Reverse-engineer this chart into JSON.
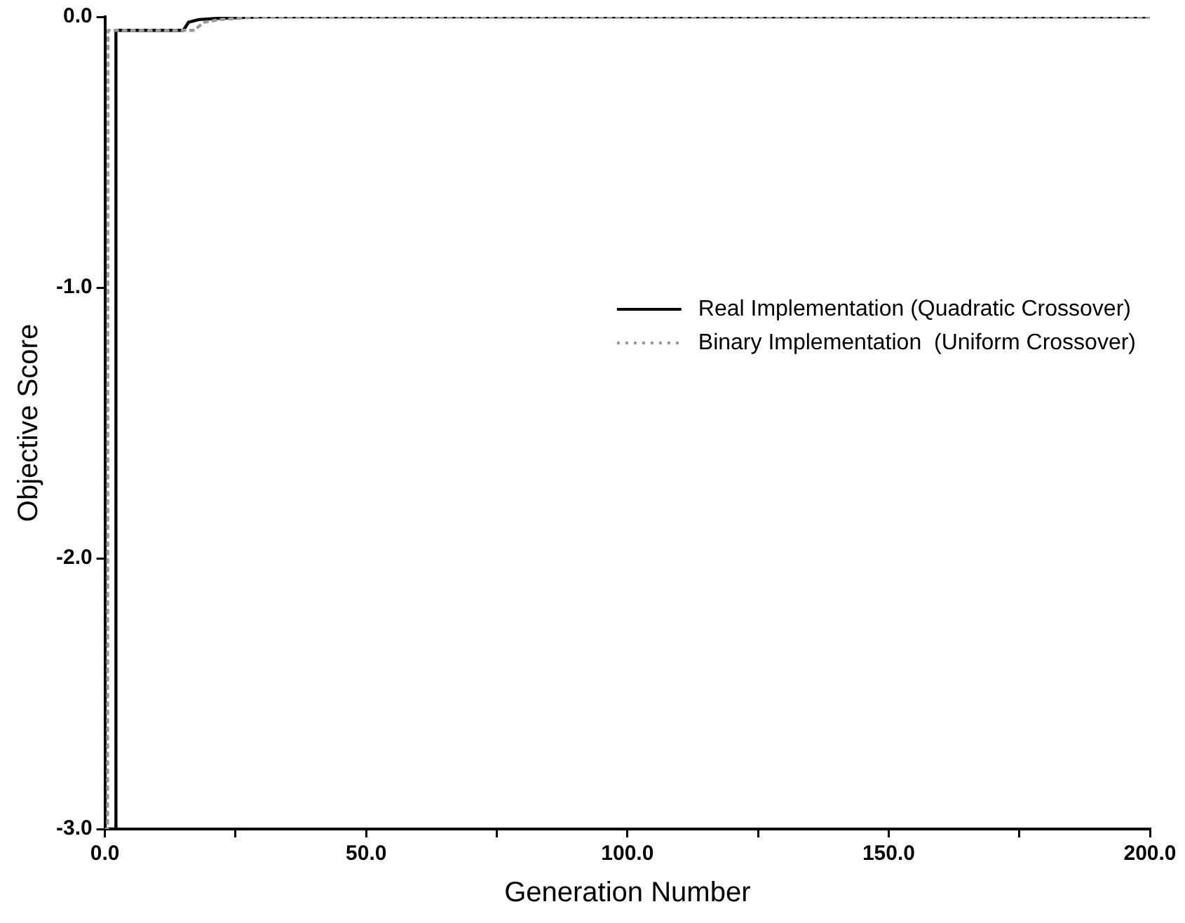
{
  "chart_data": {
    "type": "line",
    "xlabel": "Generation Number",
    "ylabel": "Objective Score",
    "xlim": [
      0,
      200
    ],
    "ylim": [
      -3,
      0
    ],
    "xticks": [
      {
        "value": 0,
        "label": "0.0"
      },
      {
        "value": 25,
        "label": null
      },
      {
        "value": 50,
        "label": "50.0"
      },
      {
        "value": 75,
        "label": null
      },
      {
        "value": 100,
        "label": "100.0"
      },
      {
        "value": 125,
        "label": null
      },
      {
        "value": 150,
        "label": "150.0"
      },
      {
        "value": 175,
        "label": null
      },
      {
        "value": 200,
        "label": "200.0"
      }
    ],
    "yticks": [
      {
        "value": -3,
        "label": "-3.0"
      },
      {
        "value": -2,
        "label": "-2.0"
      },
      {
        "value": -1,
        "label": "-1.0"
      },
      {
        "value": 0,
        "label": "0.0"
      }
    ],
    "grid": false,
    "legend": "right",
    "marker": "none",
    "series": [
      {
        "name": "Real Implementation (Quadratic Crossover)",
        "color": "#000000",
        "line_style": "solid",
        "x": [
          0,
          2,
          2.1,
          15,
          16,
          18,
          22,
          30,
          60,
          100,
          150,
          200
        ],
        "values": [
          -3,
          -3,
          -0.05,
          -0.05,
          -0.02,
          -0.01,
          -0.005,
          0,
          0,
          0,
          0,
          0
        ]
      },
      {
        "name": "Binary Implementation  (Uniform Crossover)",
        "color": "#999999",
        "line_style": "dotted",
        "x": [
          0,
          0.5,
          0.6,
          17,
          19,
          22,
          30,
          60,
          100,
          150,
          200
        ],
        "values": [
          -3,
          -3,
          -0.05,
          -0.05,
          -0.02,
          -0.01,
          0,
          0,
          0,
          0,
          0
        ]
      }
    ]
  }
}
